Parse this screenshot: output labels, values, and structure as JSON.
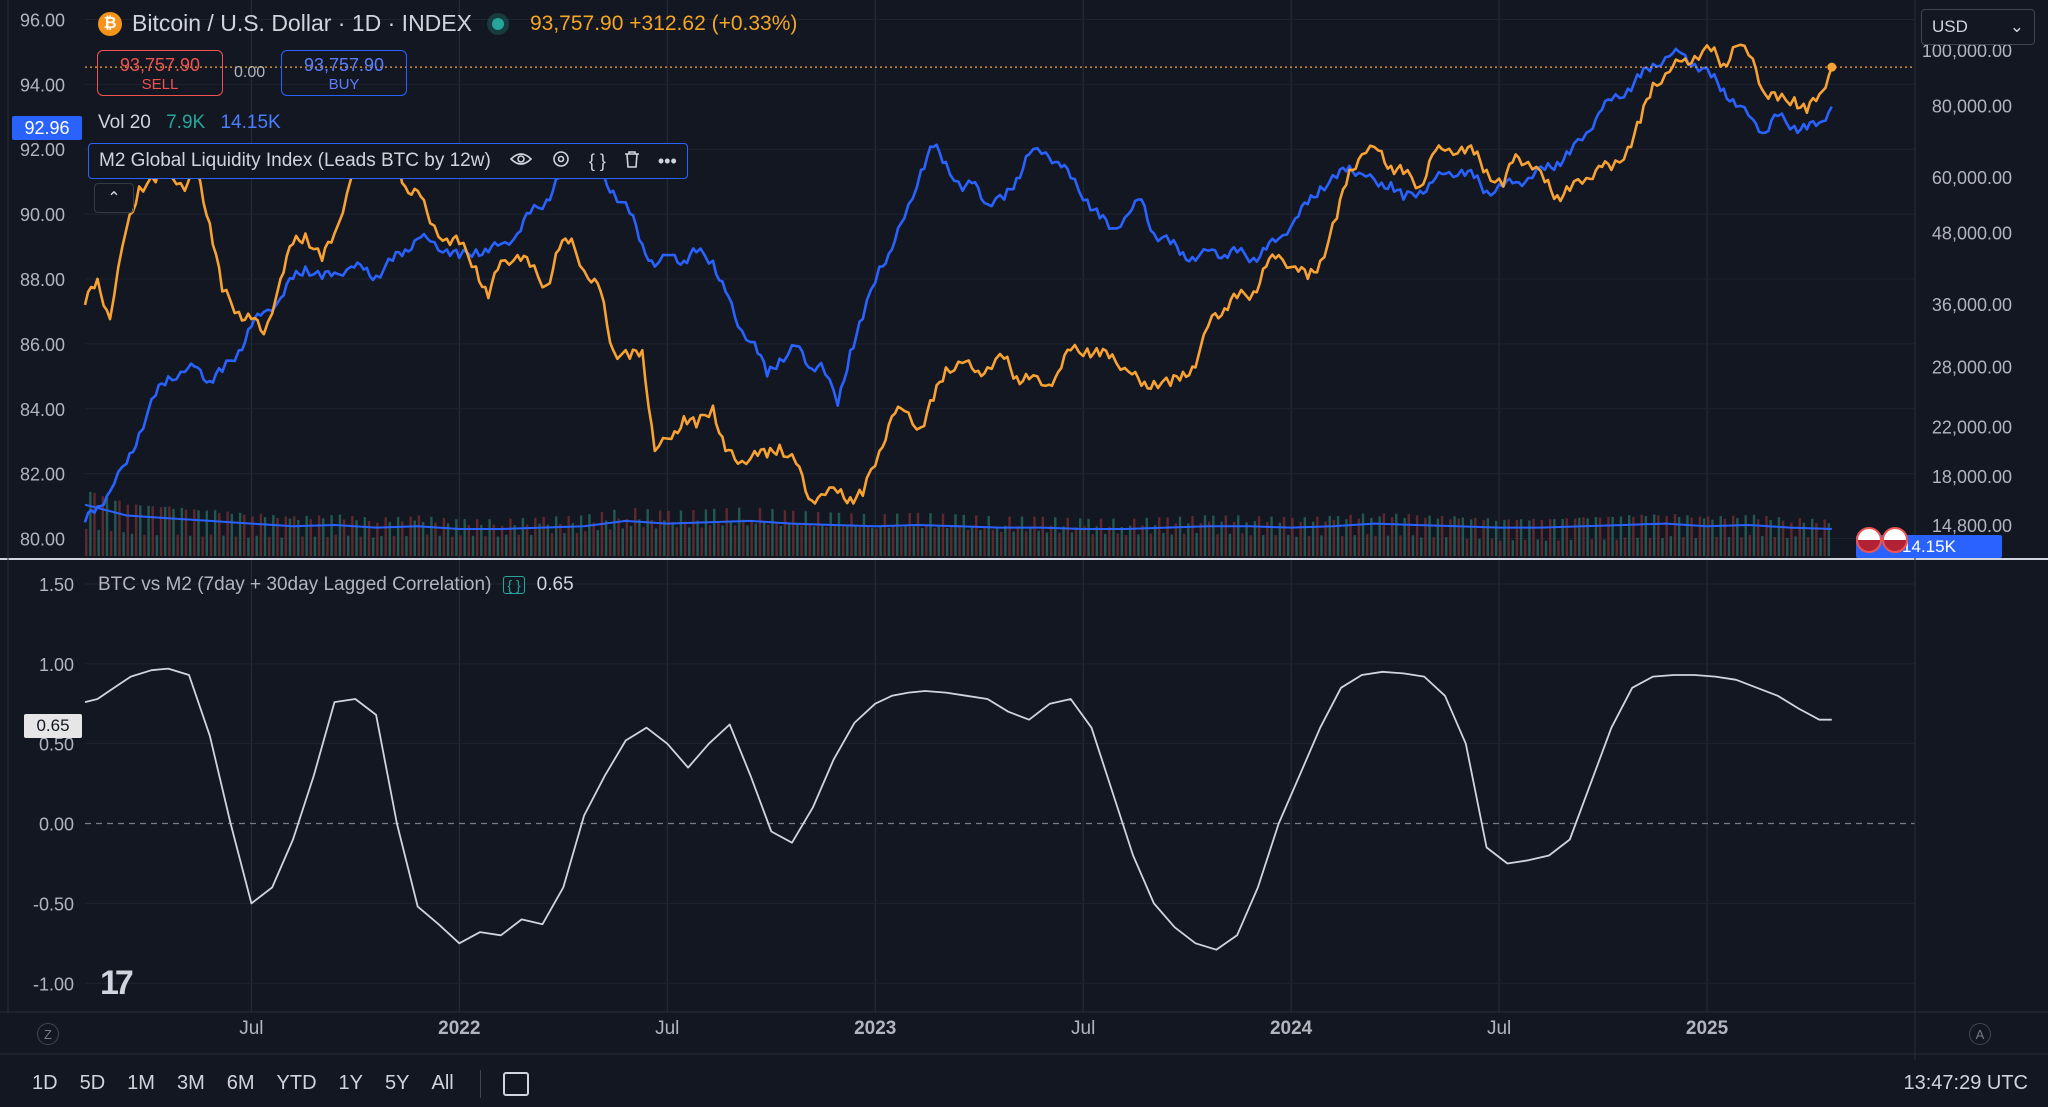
{
  "header": {
    "title": "Bitcoin / U.S. Dollar · 1D · INDEX",
    "last_price": "93,757.90",
    "change": "+312.62 (+0.33%)",
    "btc_icon": "bitcoin-icon"
  },
  "trade": {
    "sell_price": "93,757.90",
    "sell_label": "SELL",
    "buy_price": "93,757.90",
    "buy_label": "BUY",
    "spread": "0.00"
  },
  "volume_legend": {
    "name": "Vol 20",
    "value1": "7.9K",
    "value2": "14.15K"
  },
  "indicator_legend": {
    "name": "M2 Global Liquidity Index (Leads BTC by 12w)"
  },
  "correlation_legend": {
    "name": "BTC vs M2 (7day + 30day Lagged Correlation)",
    "value": "0.65"
  },
  "currency_select": {
    "value": "USD"
  },
  "price_tags": {
    "left_axis": "92.96",
    "volume": "14.15K",
    "correlation": "0.65"
  },
  "corner_labels": {
    "left": "Z",
    "right": "A"
  },
  "bottom_bar": {
    "ranges": [
      "1D",
      "5D",
      "1M",
      "3M",
      "6M",
      "YTD",
      "1Y",
      "5Y",
      "All"
    ],
    "time": "13:47:29 UTC"
  },
  "chart_data": [
    {
      "type": "line",
      "x_ticks": [
        "Jul",
        "2022",
        "Jul",
        "2023",
        "Jul",
        "2024",
        "Jul",
        "2025"
      ],
      "x_range": [
        2021.1,
        2025.5
      ],
      "left_axis": {
        "ticks": [
          "96.00",
          "94.00",
          "92.00",
          "90.00",
          "88.00",
          "86.00",
          "84.00",
          "82.00",
          "80.00"
        ],
        "range": [
          79.4,
          96.6
        ]
      },
      "right_axis": {
        "scale": "log",
        "ticks": [
          "100,000.00",
          "80,000.00",
          "60,000.00",
          "48,000.00",
          "36,000.00",
          "28,000.00",
          "22,000.00",
          "18,000.00",
          "14,800.00"
        ],
        "range": [
          13000,
          118000
        ]
      },
      "grid": true,
      "series": [
        {
          "name": "Bitcoin / U.S. Dollar",
          "axis": "right",
          "color": "#f7a233",
          "x": [
            2021.1,
            2021.13,
            2021.16,
            2021.2,
            2021.23,
            2021.27,
            2021.3,
            2021.34,
            2021.37,
            2021.4,
            2021.43,
            2021.47,
            2021.5,
            2021.53,
            2021.57,
            2021.6,
            2021.63,
            2021.67,
            2021.7,
            2021.74,
            2021.77,
            2021.8,
            2021.84,
            2021.87,
            2021.9,
            2021.93,
            2021.97,
            2022.0,
            2022.04,
            2022.07,
            2022.1,
            2022.14,
            2022.17,
            2022.21,
            2022.24,
            2022.27,
            2022.31,
            2022.34,
            2022.37,
            2022.41,
            2022.44,
            2022.47,
            2022.51,
            2022.54,
            2022.57,
            2022.61,
            2022.64,
            2022.67,
            2022.71,
            2022.74,
            2022.77,
            2022.81,
            2022.84,
            2022.87,
            2022.91,
            2022.94,
            2022.97,
            2023.01,
            2023.04,
            2023.07,
            2023.11,
            2023.14,
            2023.17,
            2023.21,
            2023.24,
            2023.27,
            2023.31,
            2023.34,
            2023.37,
            2023.41,
            2023.44,
            2023.47,
            2023.51,
            2023.54,
            2023.57,
            2023.61,
            2023.64,
            2023.67,
            2023.71,
            2023.74,
            2023.77,
            2023.81,
            2023.84,
            2023.87,
            2023.91,
            2023.94,
            2023.97,
            2024.01,
            2024.04,
            2024.07,
            2024.11,
            2024.14,
            2024.17,
            2024.21,
            2024.24,
            2024.27,
            2024.31,
            2024.34,
            2024.37,
            2024.41,
            2024.44,
            2024.47,
            2024.51,
            2024.54,
            2024.57,
            2024.61,
            2024.64,
            2024.67,
            2024.71,
            2024.74,
            2024.77,
            2024.81,
            2024.84,
            2024.87,
            2024.91,
            2024.94,
            2024.97,
            2025.01,
            2025.04,
            2025.07,
            2025.11,
            2025.14,
            2025.17,
            2025.21,
            2025.24,
            2025.27,
            2025.3
          ],
          "y": [
            36000,
            40000,
            34000,
            49000,
            58000,
            59000,
            63000,
            57000,
            62000,
            50000,
            38000,
            35000,
            34000,
            32000,
            40000,
            46000,
            48000,
            43000,
            48000,
            60000,
            62000,
            65000,
            66000,
            58000,
            57000,
            50000,
            47000,
            46000,
            42000,
            37000,
            43000,
            44000,
            42000,
            39000,
            45000,
            47000,
            40000,
            38000,
            30000,
            29000,
            30000,
            20000,
            21000,
            23000,
            22000,
            24000,
            20000,
            19000,
            20000,
            19500,
            20500,
            19000,
            16500,
            16800,
            16900,
            16600,
            16700,
            20000,
            23000,
            23500,
            22000,
            24500,
            28000,
            28500,
            27500,
            28000,
            29000,
            27000,
            26700,
            26000,
            27500,
            30000,
            30200,
            29300,
            29500,
            27500,
            26000,
            26500,
            26000,
            27500,
            28000,
            34500,
            35500,
            37000,
            38000,
            42000,
            44000,
            42000,
            40000,
            43000,
            51000,
            62000,
            66000,
            67000,
            63000,
            61000,
            58000,
            66000,
            67000,
            68000,
            66000,
            62000,
            58000,
            66000,
            64000,
            59000,
            56000,
            57000,
            60000,
            63000,
            62000,
            68000,
            75000,
            88000,
            92000,
            96000,
            98000,
            100000,
            95000,
            102000,
            97000,
            84000,
            82000,
            83000,
            78000,
            84000,
            93757.9
          ]
        },
        {
          "name": "M2 Global Liquidity Index (Leads BTC by 12w)",
          "axis": "right",
          "color": "#2962ff",
          "x": [
            2021.1,
            2021.13,
            2021.16,
            2021.2,
            2021.23,
            2021.27,
            2021.3,
            2021.34,
            2021.37,
            2021.4,
            2021.43,
            2021.47,
            2021.5,
            2021.53,
            2021.57,
            2021.6,
            2021.63,
            2021.67,
            2021.7,
            2021.74,
            2021.77,
            2021.8,
            2021.84,
            2021.87,
            2021.9,
            2021.93,
            2021.97,
            2022.0,
            2022.04,
            2022.07,
            2022.1,
            2022.14,
            2022.17,
            2022.21,
            2022.24,
            2022.27,
            2022.31,
            2022.34,
            2022.37,
            2022.41,
            2022.44,
            2022.47,
            2022.51,
            2022.54,
            2022.57,
            2022.61,
            2022.64,
            2022.67,
            2022.71,
            2022.74,
            2022.77,
            2022.81,
            2022.84,
            2022.87,
            2022.91,
            2022.94,
            2022.97,
            2023.01,
            2023.04,
            2023.07,
            2023.11,
            2023.14,
            2023.17,
            2023.21,
            2023.24,
            2023.27,
            2023.31,
            2023.34,
            2023.37,
            2023.41,
            2023.44,
            2023.47,
            2023.51,
            2023.54,
            2023.57,
            2023.61,
            2023.64,
            2023.67,
            2023.71,
            2023.74,
            2023.77,
            2023.81,
            2023.84,
            2023.87,
            2023.91,
            2023.94,
            2023.97,
            2024.01,
            2024.04,
            2024.07,
            2024.11,
            2024.14,
            2024.17,
            2024.21,
            2024.24,
            2024.27,
            2024.31,
            2024.34,
            2024.37,
            2024.41,
            2024.44,
            2024.47,
            2024.51,
            2024.54,
            2024.57,
            2024.61,
            2024.64,
            2024.67,
            2024.71,
            2024.74,
            2024.77,
            2024.81,
            2024.84,
            2024.87,
            2024.91,
            2024.94,
            2024.97,
            2025.01,
            2025.04,
            2025.07,
            2025.11,
            2025.14,
            2025.17,
            2025.21,
            2025.24,
            2025.27,
            2025.3
          ],
          "y": [
            15000,
            16000,
            17000,
            19000,
            21500,
            25000,
            27000,
            27500,
            28000,
            26500,
            27500,
            30000,
            33000,
            35000,
            37000,
            40000,
            42000,
            40000,
            41000,
            42000,
            41500,
            40500,
            43000,
            45000,
            47000,
            46500,
            45000,
            43500,
            45000,
            44500,
            46000,
            48000,
            52000,
            55000,
            60000,
            64000,
            63000,
            61000,
            57000,
            52000,
            46000,
            42000,
            44000,
            43000,
            44500,
            43000,
            38000,
            33000,
            31000,
            27000,
            29000,
            30500,
            28000,
            28500,
            24000,
            30000,
            34000,
            42000,
            45000,
            51000,
            62000,
            68000,
            64000,
            57000,
            59000,
            54000,
            55000,
            60000,
            66000,
            66500,
            64000,
            60000,
            55000,
            51000,
            49000,
            52000,
            55000,
            48000,
            46000,
            44500,
            43000,
            45000,
            44000,
            44500,
            43500,
            45000,
            47000,
            51000,
            54000,
            58000,
            60000,
            63000,
            61000,
            58000,
            59000,
            55000,
            57000,
            59000,
            61000,
            62000,
            60000,
            57000,
            58000,
            59000,
            60000,
            62000,
            64000,
            66000,
            72000,
            78000,
            82000,
            86000,
            90000,
            95000,
            98000,
            99000,
            95000,
            90000,
            86000,
            80000,
            76000,
            72000,
            77000,
            74000,
            73000,
            75000,
            80000
          ]
        },
        {
          "name": "Vol 20",
          "axis": "volume",
          "color": "#2962ff",
          "x": [
            2021.1,
            2021.2,
            2021.3,
            2021.4,
            2021.5,
            2021.6,
            2021.7,
            2021.8,
            2021.9,
            2022.0,
            2022.1,
            2022.2,
            2022.3,
            2022.4,
            2022.5,
            2022.6,
            2022.7,
            2022.8,
            2022.9,
            2023.0,
            2023.1,
            2023.2,
            2023.3,
            2023.4,
            2023.5,
            2023.6,
            2023.7,
            2023.8,
            2023.9,
            2024.0,
            2024.1,
            2024.2,
            2024.3,
            2024.4,
            2024.5,
            2024.6,
            2024.7,
            2024.8,
            2024.9,
            2025.0,
            2025.1,
            2025.2,
            2025.3
          ],
          "y": [
            38,
            30,
            28,
            26,
            24,
            22,
            23,
            21,
            22,
            20,
            20,
            21,
            22,
            26,
            24,
            25,
            26,
            24,
            23,
            22,
            23,
            22,
            21,
            21,
            20,
            20,
            21,
            22,
            22,
            21,
            22,
            24,
            23,
            22,
            21,
            21,
            22,
            23,
            24,
            22,
            23,
            21,
            20
          ]
        }
      ]
    },
    {
      "type": "line",
      "x_ticks": [
        "Jul",
        "2022",
        "Jul",
        "2023",
        "Jul",
        "2024",
        "Jul",
        "2025"
      ],
      "x_range": [
        2021.1,
        2025.5
      ],
      "y_axis": {
        "ticks": [
          "1.50",
          "1.00",
          "0.50",
          "0.00",
          "-0.50",
          "-1.00"
        ],
        "range": [
          -1.18,
          1.65
        ]
      },
      "reference_line": 0,
      "grid": true,
      "series": [
        {
          "name": "BTC vs M2 (7day + 30day Lagged Correlation)",
          "color": "#d1d4dc",
          "x": [
            2021.1,
            2021.13,
            2021.17,
            2021.21,
            2021.26,
            2021.3,
            2021.35,
            2021.4,
            2021.45,
            2021.5,
            2021.55,
            2021.6,
            2021.65,
            2021.7,
            2021.75,
            2021.8,
            2021.85,
            2021.9,
            2021.95,
            2022.0,
            2022.05,
            2022.1,
            2022.15,
            2022.2,
            2022.25,
            2022.3,
            2022.35,
            2022.4,
            2022.45,
            2022.5,
            2022.55,
            2022.6,
            2022.65,
            2022.7,
            2022.75,
            2022.8,
            2022.85,
            2022.9,
            2022.95,
            2023.0,
            2023.04,
            2023.08,
            2023.12,
            2023.17,
            2023.22,
            2023.27,
            2023.32,
            2023.37,
            2023.42,
            2023.47,
            2023.52,
            2023.57,
            2023.62,
            2023.67,
            2023.72,
            2023.77,
            2023.82,
            2023.87,
            2023.92,
            2023.97,
            2024.02,
            2024.07,
            2024.12,
            2024.17,
            2024.22,
            2024.27,
            2024.32,
            2024.37,
            2024.42,
            2024.47,
            2024.52,
            2024.57,
            2024.62,
            2024.67,
            2024.72,
            2024.77,
            2024.82,
            2024.87,
            2024.92,
            2024.97,
            2025.02,
            2025.07,
            2025.12,
            2025.17,
            2025.22,
            2025.27,
            2025.3
          ],
          "y": [
            0.76,
            0.78,
            0.85,
            0.92,
            0.96,
            0.97,
            0.93,
            0.55,
            0.0,
            -0.5,
            -0.4,
            -0.1,
            0.3,
            0.76,
            0.78,
            0.68,
            0.0,
            -0.52,
            -0.63,
            -0.75,
            -0.68,
            -0.7,
            -0.6,
            -0.63,
            -0.4,
            0.05,
            0.3,
            0.52,
            0.6,
            0.5,
            0.35,
            0.5,
            0.62,
            0.3,
            -0.05,
            -0.12,
            0.1,
            0.4,
            0.63,
            0.75,
            0.8,
            0.82,
            0.83,
            0.82,
            0.8,
            0.78,
            0.7,
            0.65,
            0.75,
            0.78,
            0.6,
            0.2,
            -0.2,
            -0.5,
            -0.65,
            -0.75,
            -0.79,
            -0.7,
            -0.4,
            0.0,
            0.3,
            0.6,
            0.85,
            0.93,
            0.95,
            0.94,
            0.92,
            0.8,
            0.5,
            -0.15,
            -0.25,
            -0.23,
            -0.2,
            -0.1,
            0.25,
            0.6,
            0.85,
            0.92,
            0.93,
            0.93,
            0.92,
            0.9,
            0.85,
            0.8,
            0.72,
            0.65,
            0.65
          ]
        }
      ]
    }
  ]
}
